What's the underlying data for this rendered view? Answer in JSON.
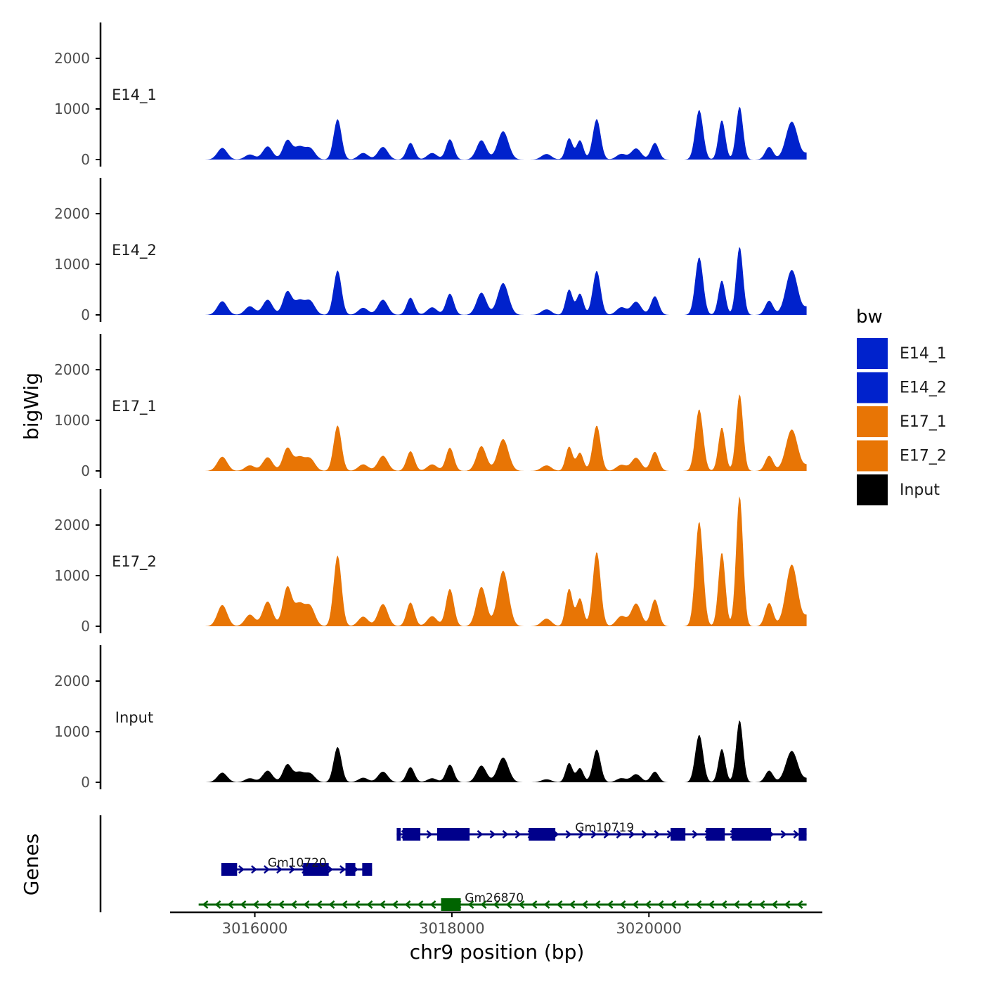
{
  "chart_data": {
    "type": "area",
    "ylabel": "bigWig",
    "genes_label": "Genes",
    "xlabel": "chr9 position (bp)",
    "xlim": [
      3015140,
      3021760
    ],
    "ylim": [
      0,
      2600
    ],
    "y_ticks": [
      0,
      1000,
      2000
    ],
    "y_tick_labels": [
      "0",
      "1000",
      "2000"
    ],
    "x_ticks": [
      3016000,
      3018000,
      3020000
    ],
    "x_tick_labels": [
      "3016000",
      "3018000",
      "3020000"
    ],
    "data_x_range": [
      3015500,
      3021600
    ],
    "colors": {
      "E14": "#0022cc",
      "E17": "#e87505",
      "Input": "#000000",
      "gene_plus": "#00008b",
      "gene_minus": "#006400"
    },
    "legend": {
      "title": "bw",
      "position": "right",
      "entries": [
        {
          "label": "E14_1",
          "color": "#0022cc"
        },
        {
          "label": "E14_2",
          "color": "#0022cc"
        },
        {
          "label": "E17_1",
          "color": "#e87505"
        },
        {
          "label": "E17_2",
          "color": "#e87505"
        },
        {
          "label": "Input",
          "color": "#000000"
        }
      ]
    },
    "series": [
      {
        "name": "E14_1",
        "color": "#0022cc",
        "peaks": [
          [
            3015670,
            230,
            50
          ],
          [
            3015950,
            100,
            50
          ],
          [
            3016130,
            260,
            50
          ],
          [
            3016330,
            380,
            45
          ],
          [
            3016450,
            240,
            50
          ],
          [
            3016560,
            220,
            50
          ],
          [
            3016840,
            800,
            40
          ],
          [
            3017100,
            130,
            50
          ],
          [
            3017300,
            250,
            50
          ],
          [
            3017580,
            330,
            40
          ],
          [
            3017800,
            130,
            50
          ],
          [
            3017980,
            400,
            40
          ],
          [
            3018300,
            380,
            50
          ],
          [
            3018520,
            560,
            55
          ],
          [
            3018960,
            110,
            50
          ],
          [
            3019190,
            420,
            35
          ],
          [
            3019300,
            380,
            35
          ],
          [
            3019470,
            800,
            40
          ],
          [
            3019720,
            110,
            50
          ],
          [
            3019870,
            220,
            50
          ],
          [
            3020060,
            330,
            40
          ],
          [
            3020510,
            980,
            40
          ],
          [
            3020740,
            780,
            35
          ],
          [
            3020920,
            1050,
            35
          ],
          [
            3021220,
            250,
            40
          ],
          [
            3021450,
            750,
            60
          ],
          [
            3021620,
            120,
            40
          ]
        ]
      },
      {
        "name": "E14_2",
        "color": "#0022cc",
        "peaks": [
          [
            3015670,
            270,
            50
          ],
          [
            3015950,
            170,
            50
          ],
          [
            3016130,
            300,
            50
          ],
          [
            3016330,
            460,
            45
          ],
          [
            3016450,
            270,
            50
          ],
          [
            3016560,
            270,
            50
          ],
          [
            3016840,
            880,
            40
          ],
          [
            3017100,
            140,
            50
          ],
          [
            3017300,
            300,
            50
          ],
          [
            3017580,
            340,
            40
          ],
          [
            3017800,
            150,
            50
          ],
          [
            3017980,
            420,
            40
          ],
          [
            3018300,
            440,
            50
          ],
          [
            3018520,
            630,
            55
          ],
          [
            3018960,
            110,
            50
          ],
          [
            3019190,
            500,
            35
          ],
          [
            3019300,
            420,
            35
          ],
          [
            3019470,
            870,
            40
          ],
          [
            3019720,
            150,
            50
          ],
          [
            3019870,
            260,
            50
          ],
          [
            3020060,
            370,
            40
          ],
          [
            3020510,
            1140,
            40
          ],
          [
            3020740,
            680,
            35
          ],
          [
            3020920,
            1350,
            35
          ],
          [
            3021220,
            280,
            40
          ],
          [
            3021450,
            890,
            60
          ],
          [
            3021620,
            150,
            40
          ]
        ]
      },
      {
        "name": "E17_1",
        "color": "#e87505",
        "peaks": [
          [
            3015670,
            280,
            50
          ],
          [
            3015950,
            110,
            50
          ],
          [
            3016130,
            270,
            50
          ],
          [
            3016330,
            450,
            45
          ],
          [
            3016450,
            260,
            50
          ],
          [
            3016560,
            240,
            50
          ],
          [
            3016840,
            900,
            40
          ],
          [
            3017100,
            130,
            50
          ],
          [
            3017300,
            300,
            50
          ],
          [
            3017580,
            390,
            40
          ],
          [
            3017800,
            130,
            50
          ],
          [
            3017980,
            460,
            40
          ],
          [
            3018300,
            490,
            50
          ],
          [
            3018520,
            630,
            55
          ],
          [
            3018960,
            110,
            50
          ],
          [
            3019190,
            480,
            35
          ],
          [
            3019300,
            360,
            35
          ],
          [
            3019470,
            900,
            40
          ],
          [
            3019720,
            120,
            50
          ],
          [
            3019870,
            260,
            50
          ],
          [
            3020060,
            380,
            40
          ],
          [
            3020510,
            1220,
            40
          ],
          [
            3020740,
            860,
            35
          ],
          [
            3020920,
            1520,
            35
          ],
          [
            3021220,
            300,
            40
          ],
          [
            3021450,
            820,
            60
          ],
          [
            3021620,
            110,
            40
          ]
        ]
      },
      {
        "name": "E17_2",
        "color": "#e87505",
        "peaks": [
          [
            3015670,
            420,
            50
          ],
          [
            3015950,
            230,
            50
          ],
          [
            3016130,
            490,
            50
          ],
          [
            3016330,
            770,
            45
          ],
          [
            3016450,
            420,
            50
          ],
          [
            3016560,
            390,
            50
          ],
          [
            3016840,
            1400,
            40
          ],
          [
            3017100,
            190,
            50
          ],
          [
            3017300,
            440,
            50
          ],
          [
            3017580,
            470,
            40
          ],
          [
            3017800,
            200,
            50
          ],
          [
            3017980,
            740,
            40
          ],
          [
            3018300,
            780,
            50
          ],
          [
            3018520,
            1100,
            55
          ],
          [
            3018960,
            150,
            50
          ],
          [
            3019190,
            740,
            35
          ],
          [
            3019300,
            550,
            35
          ],
          [
            3019470,
            1470,
            40
          ],
          [
            3019720,
            200,
            50
          ],
          [
            3019870,
            450,
            50
          ],
          [
            3020060,
            530,
            40
          ],
          [
            3020510,
            2070,
            40
          ],
          [
            3020740,
            1460,
            35
          ],
          [
            3020920,
            2580,
            35
          ],
          [
            3021220,
            460,
            40
          ],
          [
            3021450,
            1220,
            60
          ],
          [
            3021620,
            200,
            40
          ]
        ]
      },
      {
        "name": "Input",
        "color": "#000000",
        "peaks": [
          [
            3015670,
            190,
            50
          ],
          [
            3015950,
            80,
            50
          ],
          [
            3016130,
            230,
            50
          ],
          [
            3016330,
            350,
            45
          ],
          [
            3016450,
            190,
            50
          ],
          [
            3016560,
            170,
            50
          ],
          [
            3016840,
            700,
            40
          ],
          [
            3017100,
            90,
            50
          ],
          [
            3017300,
            210,
            50
          ],
          [
            3017580,
            300,
            40
          ],
          [
            3017800,
            80,
            50
          ],
          [
            3017980,
            350,
            40
          ],
          [
            3018300,
            330,
            50
          ],
          [
            3018520,
            490,
            55
          ],
          [
            3018960,
            60,
            50
          ],
          [
            3019190,
            380,
            35
          ],
          [
            3019300,
            280,
            35
          ],
          [
            3019470,
            650,
            40
          ],
          [
            3019720,
            80,
            50
          ],
          [
            3019870,
            160,
            50
          ],
          [
            3020060,
            210,
            40
          ],
          [
            3020510,
            940,
            40
          ],
          [
            3020740,
            660,
            35
          ],
          [
            3020920,
            1230,
            35
          ],
          [
            3021220,
            230,
            40
          ],
          [
            3021450,
            620,
            60
          ],
          [
            3021620,
            70,
            40
          ]
        ]
      }
    ],
    "genes": [
      {
        "name": "Gm10719",
        "strand": "+",
        "color": "#00008b",
        "start": 3017440,
        "end": 3021600,
        "label_x": 3019550,
        "exons": [
          [
            3017440,
            3017480
          ],
          [
            3017500,
            3017680
          ],
          [
            3017850,
            3018180
          ],
          [
            3018780,
            3019050
          ],
          [
            3020220,
            3020370
          ],
          [
            3020580,
            3020770
          ],
          [
            3020840,
            3021240
          ],
          [
            3021520,
            3021600
          ]
        ]
      },
      {
        "name": "Gm10720",
        "strand": "+",
        "color": "#00008b",
        "start": 3015660,
        "end": 3017190,
        "label_x": 3016430,
        "exons": [
          [
            3015660,
            3015820
          ],
          [
            3016490,
            3016750
          ],
          [
            3016920,
            3017020
          ],
          [
            3017090,
            3017190
          ]
        ]
      },
      {
        "name": "Gm26870",
        "strand": "-",
        "color": "#006400",
        "start": 3015430,
        "end": 3021600,
        "label_x": 3018430,
        "exons": [
          [
            3017890,
            3018090
          ]
        ]
      }
    ]
  }
}
